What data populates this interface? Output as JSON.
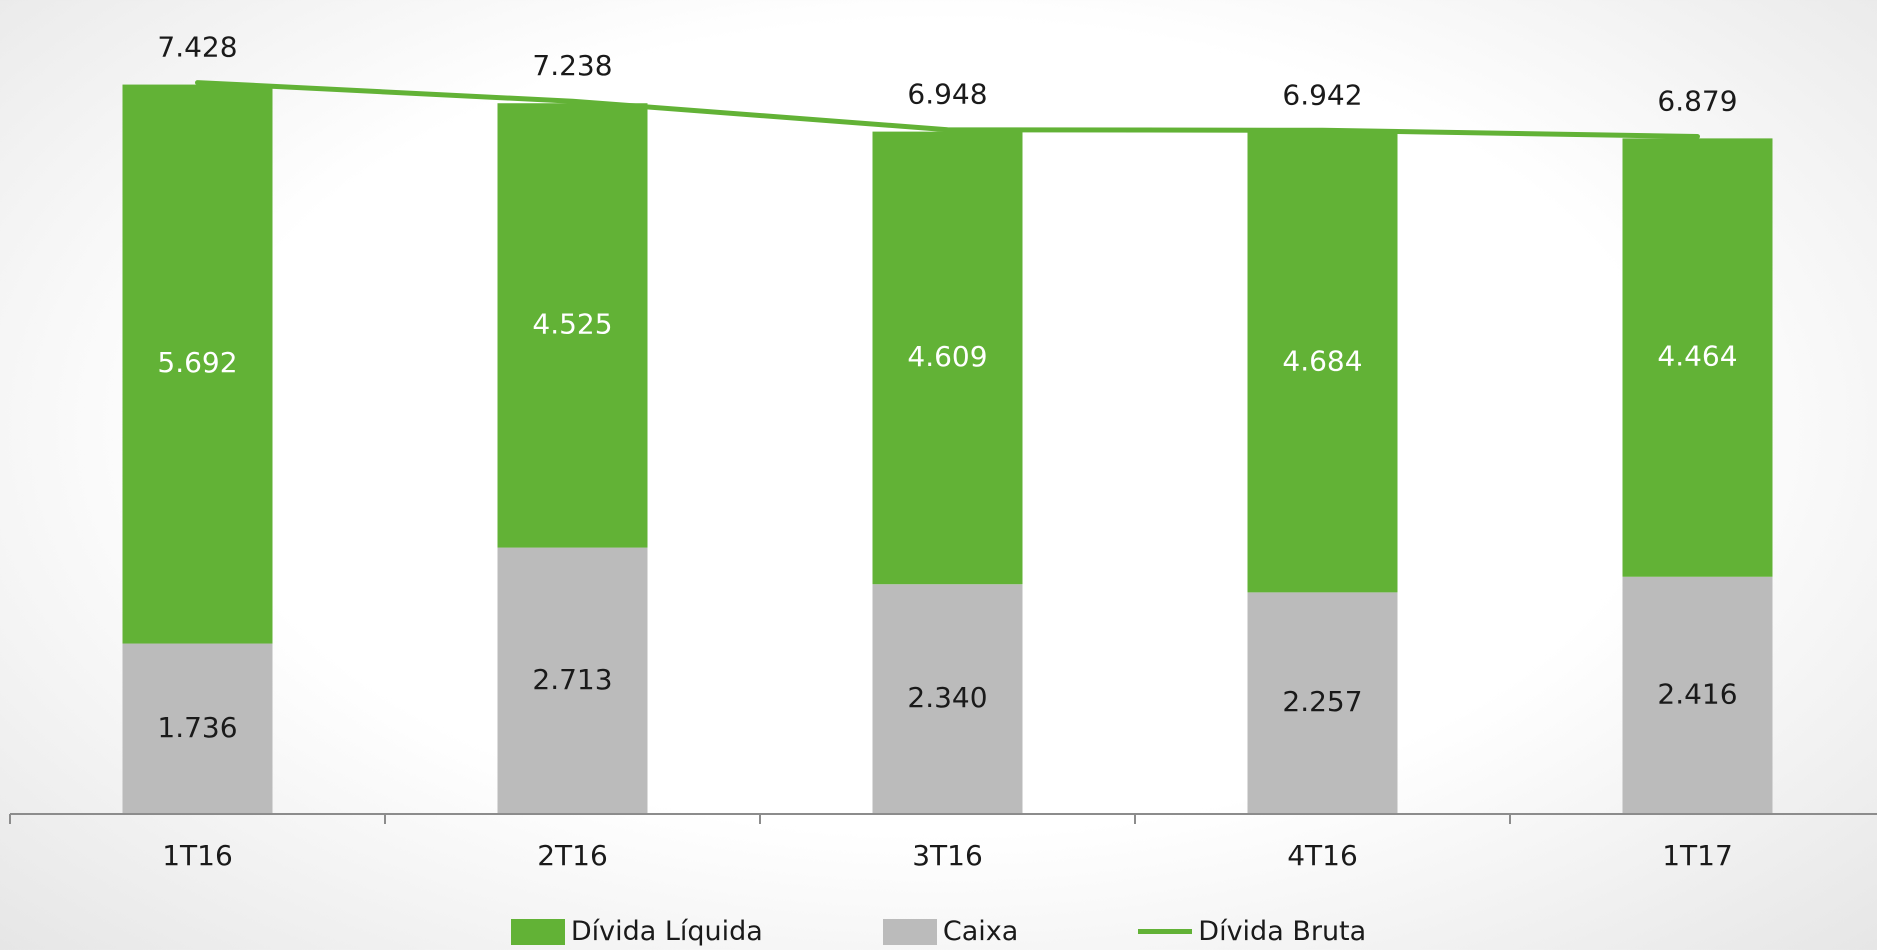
{
  "chart_data": {
    "type": "bar",
    "stacked": true,
    "categories": [
      "1T16",
      "2T16",
      "3T16",
      "4T16",
      "1T17"
    ],
    "series": [
      {
        "name": "Caixa",
        "kind": "bar",
        "color": "#bbbbbb",
        "values": [
          1736,
          2713,
          2340,
          2257,
          2416
        ],
        "labels": [
          "1.736",
          "2.713",
          "2.340",
          "2.257",
          "2.416"
        ]
      },
      {
        "name": "Dívida Líquida",
        "kind": "bar",
        "color": "#62b236",
        "values": [
          5692,
          4525,
          4609,
          4684,
          4464
        ],
        "labels": [
          "5.692",
          "4.525",
          "4.609",
          "4.684",
          "4.464"
        ]
      },
      {
        "name": "Dívida Bruta",
        "kind": "line",
        "color": "#62b236",
        "values": [
          7428,
          7238,
          6948,
          6942,
          6879
        ],
        "labels": [
          "7.428",
          "7.238",
          "6.948",
          "6.942",
          "6.879"
        ]
      }
    ],
    "ylim": [
      0,
      7500
    ],
    "grid": false,
    "legend_position": "bottom",
    "legend": [
      {
        "label": "Dívida Líquida",
        "symbol": "box",
        "color": "#62b236"
      },
      {
        "label": "Caixa",
        "symbol": "box",
        "color": "#bbbbbb"
      },
      {
        "label": "Dívida Bruta",
        "symbol": "line",
        "color": "#62b236"
      }
    ]
  }
}
